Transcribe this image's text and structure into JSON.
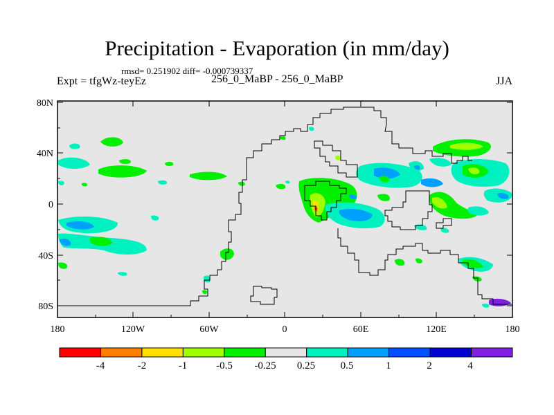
{
  "header": {
    "title": "Precipitation - Evaporation (in mm/day)",
    "stats": "rmsd= 0.251902 diff= -0.000739337",
    "experiment": "Expt = tfgWz-teyEz",
    "case": "256_0_MaBP - 256_0_MaBP",
    "season": "JJA"
  },
  "map": {
    "y_axis_labels": [
      "80N",
      "40N",
      "0",
      "40S",
      "80S"
    ],
    "x_axis_labels": [
      "180",
      "120W",
      "60W",
      "0",
      "60E",
      "120E",
      "180"
    ],
    "background_color": "#e6e6e6"
  },
  "colorbar": {
    "colors": [
      "#ff0000",
      "#ff8000",
      "#ffe000",
      "#a0ff00",
      "#00f000",
      "#e6e6e6",
      "#00f0c0",
      "#00a0ff",
      "#0050ff",
      "#0000d0",
      "#8020e0"
    ],
    "labels": [
      "-4",
      "-2",
      "-1",
      "-0.5",
      "-0.25",
      "0.25",
      "0.5",
      "1",
      "2",
      "4"
    ]
  }
}
